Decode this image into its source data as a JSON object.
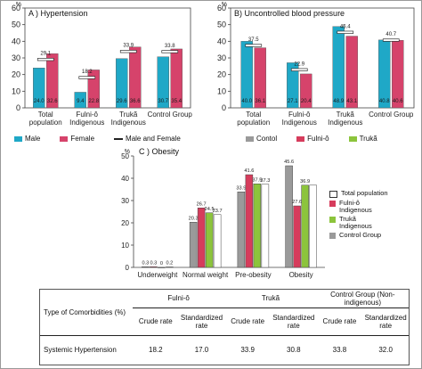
{
  "colors": {
    "male": "#1fa8c7",
    "female": "#d6436b",
    "total": "#ffffff",
    "fulnio": "#d63c5c",
    "truka": "#8cc43c",
    "control": "#9a9a9a",
    "marker": "#222222"
  },
  "chart_data": [
    {
      "type": "bar",
      "title": "A ) Hypertension",
      "ylabel": "%",
      "ylim": [
        0,
        60
      ],
      "yticks": [
        0,
        10,
        20,
        30,
        40,
        50,
        60
      ],
      "categories": [
        [
          "Total",
          "population"
        ],
        [
          "Fulni-ô",
          "Indigenous"
        ],
        [
          "Trukã",
          "Indigenous"
        ],
        [
          "Control Group"
        ]
      ],
      "series": [
        {
          "name": "Male",
          "values": [
            24.0,
            9.4,
            29.6,
            30.7
          ]
        },
        {
          "name": "Female",
          "values": [
            32.6,
            22.8,
            36.6,
            35.4
          ]
        },
        {
          "name": "Male and Female",
          "marker": "dash",
          "values": [
            29.1,
            18.2,
            33.9,
            33.8
          ]
        }
      ],
      "legend": "bottom"
    },
    {
      "type": "bar",
      "title": "B) Uncontrolled  blood pressure",
      "ylabel": "%",
      "ylim": [
        0,
        60
      ],
      "yticks": [
        0,
        10,
        20,
        30,
        40,
        50,
        60
      ],
      "categories": [
        [
          "Total",
          "population"
        ],
        [
          "Fulni-ô",
          "Indigenous"
        ],
        [
          "Trukã",
          "Indigenous"
        ],
        [
          "Control Group"
        ]
      ],
      "series": [
        {
          "name": "Male",
          "values": [
            40.0,
            27.1,
            48.9,
            40.8
          ]
        },
        {
          "name": "Female",
          "values": [
            36.1,
            20.4,
            43.1,
            40.6
          ]
        },
        {
          "name": "Male and Female",
          "marker": "dash",
          "values": [
            37.5,
            22.9,
            45.4,
            40.7
          ]
        }
      ],
      "legend": "bottom"
    },
    {
      "type": "bar",
      "title": "C ) Obesity",
      "ylabel": "%",
      "ylim": [
        0,
        50
      ],
      "yticks": [
        0,
        10,
        20,
        30,
        40,
        50
      ],
      "categories": [
        "Underweight",
        "Normal weight",
        "Pre-obesity",
        "Obesity"
      ],
      "series": [
        {
          "name": "Control Group",
          "values": [
            0.3,
            20.3,
            33.9,
            45.6
          ]
        },
        {
          "name": "Fulni-ô Indigenous",
          "values": [
            0.3,
            26.7,
            41.6,
            27.6
          ]
        },
        {
          "name": "Trukã Indigenous",
          "values": [
            0.0,
            24.5,
            37.5,
            36.9
          ]
        },
        {
          "name": "Total population",
          "values": [
            0.2,
            23.7,
            37.3,
            36.9
          ]
        }
      ],
      "value_labels": [
        [
          "0.3",
          "0.3",
          "0",
          "0.2"
        ],
        [
          "20.3",
          "26.7",
          "24.5",
          "23.7"
        ],
        [
          "33.9",
          "41.6",
          "37.5",
          "37.3"
        ],
        [
          "45.6",
          "27.6",
          "36.9",
          ""
        ]
      ],
      "legend": "right"
    }
  ],
  "legend_a": [
    "Male",
    "Female",
    "Male and Female"
  ],
  "legend_b": [
    "Contol",
    "Fulni-ô",
    "Trukã"
  ],
  "legend_c": [
    "Total population",
    "Fulni-ô Indigenous",
    "Trukã Indigenous",
    "Control Group"
  ],
  "table": {
    "row_header": "Type of Comorbidities (%)",
    "groups": [
      "Fulni-ô",
      "Trukã",
      "Control Group (Non-indigenous)"
    ],
    "subheaders": [
      "Crude rate",
      "Standardized rate",
      "Crude rate",
      "Standardized rate",
      "Crude rate",
      "Standardized rate"
    ],
    "rows": [
      {
        "label": "Systemic Hypertension",
        "values": [
          "18.2",
          "17.0",
          "33.9",
          "30.8",
          "33.8",
          "32.0"
        ]
      }
    ]
  }
}
